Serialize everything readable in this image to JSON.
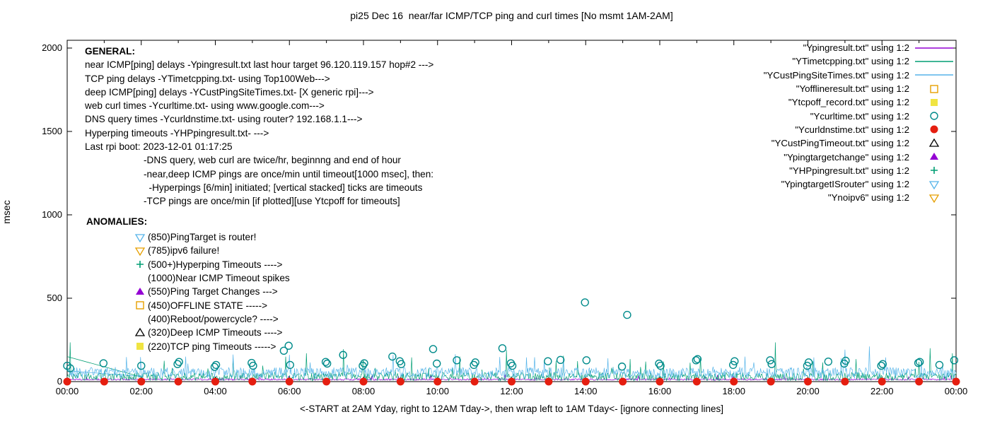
{
  "title": "pi25 Dec 16  near/far ICMP/TCP ping and curl times [No msmt 1AM-2AM]",
  "ylabel": "msec",
  "xlabel": "<-START at 2AM Yday, right to 12AM Tday->, then wrap left to 1AM Tday<- [ignore connecting lines]",
  "general": {
    "heading": "GENERAL:",
    "lines": [
      "near ICMP[ping] delays -Ypingresult.txt last hour target 96.120.119.157 hop#2 --->",
      "TCP ping delays -YTimetcpping.txt- using Top100Web--->",
      "deep ICMP[ping] delays -YCustPingSiteTimes.txt- [X generic rpi]--->",
      "web curl times -Ycurltime.txt- using www.google.com--->",
      "DNS query times -Ycurldnstime.txt- using router? 192.168.1.1--->",
      "Hyperping timeouts -YHPpingresult.txt- --->",
      "Last rpi boot: 2023-12-01 01:17:25"
    ],
    "notes": [
      "-DNS query, web curl are twice/hr, beginnng and end of hour",
      "-near,deep ICMP pings are once/min until timeout[1000 msec], then:",
      "  -Hyperpings [6/min] initiated; [vertical stacked] ticks are timeouts",
      "-TCP pings are once/min [if plotted][use Ytcpoff for timeouts]"
    ]
  },
  "anomalies": {
    "heading": "ANOMALIES:",
    "items": [
      {
        "marker": "inv-triangle-open",
        "color": "#56b4e9",
        "label": "(850)PingTarget is router!"
      },
      {
        "marker": "inv-triangle-open",
        "color": "#e69f00",
        "label": "(785)ipv6 failure!"
      },
      {
        "marker": "plus",
        "color": "#009e73",
        "label": "(500+)Hyperping Timeouts ---->"
      },
      {
        "marker": "none",
        "color": "",
        "label": "(1000)Near ICMP Timeout spikes"
      },
      {
        "marker": "triangle-filled",
        "color": "#9400d3",
        "label": "(550)Ping Target Changes --->"
      },
      {
        "marker": "square-open",
        "color": "#e69f00",
        "label": "(450)OFFLINE STATE ----->"
      },
      {
        "marker": "none",
        "color": "",
        "label": "(400)Reboot/powercycle? ---->"
      },
      {
        "marker": "triangle-open",
        "color": "#000000",
        "label": "(320)Deep ICMP Timeouts ---->"
      },
      {
        "marker": "square-filled",
        "color": "#f0e442",
        "label": "(220)TCP ping Timeouts ----->"
      }
    ]
  },
  "chart_data": {
    "type": "line",
    "x_unit": "hours",
    "xlim": [
      0,
      24
    ],
    "ylim": [
      0,
      2047
    ],
    "y_ticks": [
      0,
      500,
      1000,
      1500,
      2000
    ],
    "x_ticks": {
      "hours": [
        0,
        2,
        4,
        6,
        8,
        10,
        12,
        14,
        16,
        18,
        20,
        22,
        24
      ],
      "labels": [
        "00:00",
        "02:00",
        "04:00",
        "06:00",
        "08:00",
        "10:00",
        "12:00",
        "14:00",
        "16:00",
        "18:00",
        "20:00",
        "22:00",
        "00:00"
      ]
    },
    "series": [
      {
        "label": "\"Ypingresult.txt\" using 1:2",
        "style": "line",
        "color": "#9400d3",
        "band": [
          8,
          18
        ],
        "spikes": []
      },
      {
        "label": "\"YTimetcpping.txt\" using 1:2",
        "style": "line",
        "color": "#009e73",
        "band": [
          5,
          55
        ],
        "spikes": [
          [
            0.07,
            235
          ],
          [
            2.62,
            125
          ],
          [
            4.48,
            135
          ],
          [
            5.9,
            150
          ],
          [
            6.45,
            170
          ],
          [
            7.45,
            195
          ],
          [
            9.3,
            145
          ],
          [
            10.6,
            150
          ],
          [
            11.85,
            190
          ],
          [
            13.4,
            155
          ],
          [
            15.2,
            135
          ],
          [
            17.1,
            145
          ],
          [
            19.12,
            235
          ],
          [
            21.3,
            135
          ],
          [
            23.3,
            200
          ],
          [
            23.9,
            170
          ]
        ]
      },
      {
        "label": "\"YCustPingSiteTimes.txt\" using 1:2",
        "style": "line",
        "color": "#56b4e9",
        "band": [
          20,
          85
        ],
        "spikes": [
          [
            3.2,
            150
          ],
          [
            6.0,
            160
          ],
          [
            8.8,
            160
          ],
          [
            12.4,
            145
          ],
          [
            14.6,
            140
          ],
          [
            18.3,
            150
          ],
          [
            20.9,
            140
          ],
          [
            22.1,
            145
          ]
        ]
      },
      {
        "label": "\"Yofflineresult.txt\" using 1:2",
        "style": "square-open",
        "color": "#e69f00",
        "points": []
      },
      {
        "label": "\"Ytcpoff_record.txt\" using 1:2",
        "style": "square-filled",
        "color": "#f0e442",
        "points": []
      },
      {
        "label": "\"Ycurltime.txt\" using 1:2",
        "style": "circle-open",
        "color": "#008b8b",
        "points": [
          [
            0,
            95
          ],
          [
            0.08,
            80
          ],
          [
            0.98,
            110
          ],
          [
            2,
            95
          ],
          [
            2.98,
            105
          ],
          [
            3.02,
            118
          ],
          [
            3.98,
            88
          ],
          [
            4.02,
            100
          ],
          [
            4.98,
            112
          ],
          [
            5.02,
            95
          ],
          [
            5.85,
            185
          ],
          [
            5.98,
            215
          ],
          [
            6.02,
            100
          ],
          [
            6.98,
            118
          ],
          [
            7.02,
            108
          ],
          [
            7.45,
            160
          ],
          [
            7.98,
            95
          ],
          [
            8.02,
            110
          ],
          [
            8.78,
            150
          ],
          [
            8.98,
            122
          ],
          [
            9.02,
            105
          ],
          [
            9.88,
            195
          ],
          [
            9.98,
            108
          ],
          [
            10.52,
            128
          ],
          [
            10.98,
            100
          ],
          [
            11.02,
            115
          ],
          [
            11.75,
            200
          ],
          [
            11.98,
            110
          ],
          [
            12.02,
            95
          ],
          [
            12.98,
            122
          ],
          [
            13.32,
            130
          ],
          [
            13.98,
            475
          ],
          [
            14.02,
            128
          ],
          [
            14.98,
            90
          ],
          [
            15.12,
            400
          ],
          [
            15.98,
            108
          ],
          [
            16.02,
            95
          ],
          [
            16.98,
            128
          ],
          [
            17.02,
            135
          ],
          [
            17.98,
            100
          ],
          [
            18.02,
            122
          ],
          [
            18.98,
            128
          ],
          [
            19.02,
            105
          ],
          [
            19.98,
            95
          ],
          [
            20.02,
            115
          ],
          [
            20.55,
            120
          ],
          [
            20.98,
            108
          ],
          [
            21.02,
            125
          ],
          [
            21.98,
            95
          ],
          [
            22.02,
            105
          ],
          [
            22.98,
            112
          ],
          [
            23.02,
            118
          ],
          [
            23.55,
            100
          ],
          [
            23.95,
            128
          ]
        ]
      },
      {
        "label": "\"Ycurldnstime.txt\" using 1:2",
        "style": "circle-filled",
        "color": "#e51e10",
        "points": [
          [
            0,
            0
          ],
          [
            1,
            0
          ],
          [
            2,
            0
          ],
          [
            3,
            0
          ],
          [
            4,
            0
          ],
          [
            5,
            0
          ],
          [
            6,
            0
          ],
          [
            7,
            0
          ],
          [
            8,
            0
          ],
          [
            9,
            0
          ],
          [
            10,
            0
          ],
          [
            11,
            0
          ],
          [
            12,
            0
          ],
          [
            13,
            0
          ],
          [
            14,
            0
          ],
          [
            15,
            0
          ],
          [
            16,
            0
          ],
          [
            17,
            0
          ],
          [
            18,
            0
          ],
          [
            19,
            0
          ],
          [
            20,
            0
          ],
          [
            21,
            0
          ],
          [
            22,
            0
          ],
          [
            23,
            0
          ],
          [
            24,
            0
          ]
        ]
      },
      {
        "label": "\"YCustPingTimeout.txt\" using 1:2",
        "style": "triangle-open",
        "color": "#000000",
        "points": []
      },
      {
        "label": "\"Ypingtargetchange\" using 1:2",
        "style": "triangle-filled",
        "color": "#9400d3",
        "points": []
      },
      {
        "label": "\"YHPpingresult.txt\" using 1:2",
        "style": "plus",
        "color": "#009e73",
        "points": []
      },
      {
        "label": "\"YpingtargetISrouter\" using 1:2",
        "style": "inv-triangle-open",
        "color": "#56b4e9",
        "points": []
      },
      {
        "label": "\"Ynoipv6\" using 1:2",
        "style": "inv-triangle-open",
        "color": "#e69f00",
        "points": []
      }
    ],
    "connector_segments": [
      {
        "from": [
          0,
          150
        ],
        "to": [
          2.05,
          25
        ],
        "color": "#009e73"
      },
      {
        "from": [
          0,
          65
        ],
        "to": [
          2.05,
          30
        ],
        "color": "#56b4e9"
      }
    ]
  }
}
